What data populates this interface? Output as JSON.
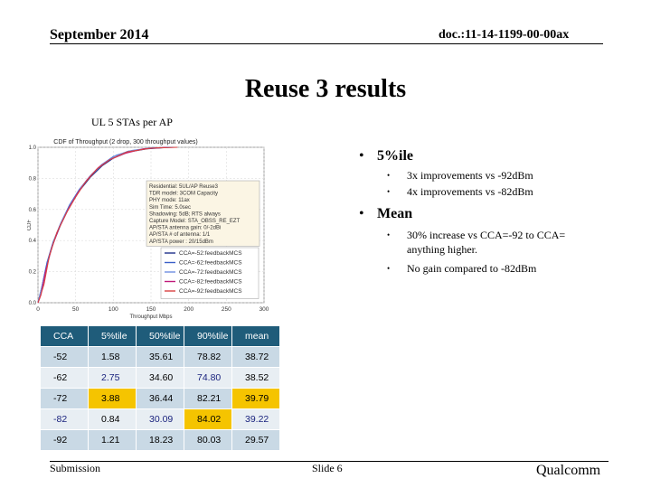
{
  "header": {
    "date": "September 2014",
    "doc": "doc.:11-14-1199-00-00ax"
  },
  "title": "Reuse 3 results",
  "subtitle": "UL 5 STAs per AP",
  "bullets": {
    "b1": {
      "text": "5%ile",
      "items": [
        "3x improvements vs -92dBm",
        "4x  improvements vs -82dBm"
      ]
    },
    "b2": {
      "text": "Mean",
      "items": [
        "30% increase vs CCA=-92 to CCA= anything higher.",
        "No gain compared to -82dBm"
      ]
    }
  },
  "chart_data": {
    "type": "line",
    "title": "CDF of Throughput (2 drop, 300 throughput values)",
    "xlabel": "Throughput Mbps",
    "ylabel": "CDF",
    "xlim": [
      0,
      300
    ],
    "ylim": [
      0,
      1.0
    ],
    "xticks": [
      "0",
      "50",
      "100",
      "150",
      "200",
      "250",
      "300"
    ],
    "yticks": [
      "1.0",
      "0.8",
      "0.6",
      "0.4",
      "0.2",
      "0.0"
    ],
    "grid": true,
    "legend_position": "lower-right",
    "annotation": [
      "Residential: 5UL/AP Reuse3",
      "TDR model: 3COM Capacity",
      "PHY mode: 11ax",
      "Sim Time: 5.0sec",
      "Shadowing: 5dB; RTS always",
      "Capture Model: STA_OBSS_RE_EZT",
      "AP/STA antenna gain: 0/-2dBi",
      "AP/STA # of antenna: 1/1",
      "AP/STA power       : 20/15dBm"
    ],
    "series": [
      {
        "name": "CCA=-52:feedbackMCS",
        "color": "#1f2f8a",
        "points": [
          [
            0,
            0
          ],
          [
            5,
            0.1
          ],
          [
            12,
            0.25
          ],
          [
            20,
            0.38
          ],
          [
            30,
            0.5
          ],
          [
            42,
            0.62
          ],
          [
            55,
            0.72
          ],
          [
            70,
            0.81
          ],
          [
            85,
            0.88
          ],
          [
            100,
            0.93
          ],
          [
            120,
            0.97
          ],
          [
            145,
            0.99
          ],
          [
            175,
            1.0
          ]
        ]
      },
      {
        "name": "CCA=-62:feedbackMCS",
        "color": "#3a5fc8",
        "points": [
          [
            0,
            0
          ],
          [
            5,
            0.1
          ],
          [
            12,
            0.26
          ],
          [
            20,
            0.39
          ],
          [
            30,
            0.51
          ],
          [
            42,
            0.63
          ],
          [
            55,
            0.73
          ],
          [
            70,
            0.82
          ],
          [
            85,
            0.89
          ],
          [
            100,
            0.94
          ],
          [
            120,
            0.975
          ],
          [
            150,
            0.995
          ],
          [
            180,
            1.0
          ]
        ]
      },
      {
        "name": "CCA=-72:feedbackMCS",
        "color": "#6f8fe0",
        "points": [
          [
            0,
            0
          ],
          [
            6,
            0.12
          ],
          [
            14,
            0.28
          ],
          [
            22,
            0.41
          ],
          [
            32,
            0.53
          ],
          [
            44,
            0.64
          ],
          [
            57,
            0.74
          ],
          [
            72,
            0.83
          ],
          [
            88,
            0.9
          ],
          [
            104,
            0.95
          ],
          [
            125,
            0.98
          ],
          [
            155,
            1.0
          ]
        ]
      },
      {
        "name": "CCA=-82:feedbackMCS",
        "color": "#c0197a",
        "points": [
          [
            0,
            0
          ],
          [
            4,
            0.05
          ],
          [
            10,
            0.2
          ],
          [
            18,
            0.35
          ],
          [
            28,
            0.48
          ],
          [
            40,
            0.6
          ],
          [
            52,
            0.7
          ],
          [
            65,
            0.79
          ],
          [
            80,
            0.87
          ],
          [
            95,
            0.92
          ],
          [
            115,
            0.96
          ],
          [
            140,
            0.99
          ],
          [
            170,
            1.0
          ]
        ]
      },
      {
        "name": "CCA=-92:feedbackMCS",
        "color": "#d94040",
        "points": [
          [
            0,
            0
          ],
          [
            3,
            0.04
          ],
          [
            8,
            0.12
          ],
          [
            15,
            0.3
          ],
          [
            25,
            0.45
          ],
          [
            38,
            0.58
          ],
          [
            50,
            0.68
          ],
          [
            62,
            0.77
          ],
          [
            78,
            0.86
          ],
          [
            95,
            0.92
          ],
          [
            118,
            0.97
          ],
          [
            150,
            0.995
          ],
          [
            185,
            1.0
          ]
        ]
      }
    ]
  },
  "table": {
    "headers": [
      "CCA",
      "5%tile",
      "50%tile",
      "90%tile",
      "mean"
    ],
    "rows": [
      [
        "-52",
        "1.58",
        "35.61",
        "78.82",
        "38.72"
      ],
      [
        "-62",
        "2.75",
        "34.60",
        "74.80",
        "38.52"
      ],
      [
        "-72",
        "3.88",
        "36.44",
        "82.21",
        "39.79"
      ],
      [
        "-82",
        "0.84",
        "30.09",
        "84.02",
        "39.22"
      ],
      [
        "-92",
        "1.21",
        "18.23",
        "80.03",
        "29.57"
      ]
    ],
    "highlight_color": "#f5c400"
  },
  "footer": {
    "left": "Submission",
    "middle": "Slide 6",
    "right": "Qualcomm"
  }
}
